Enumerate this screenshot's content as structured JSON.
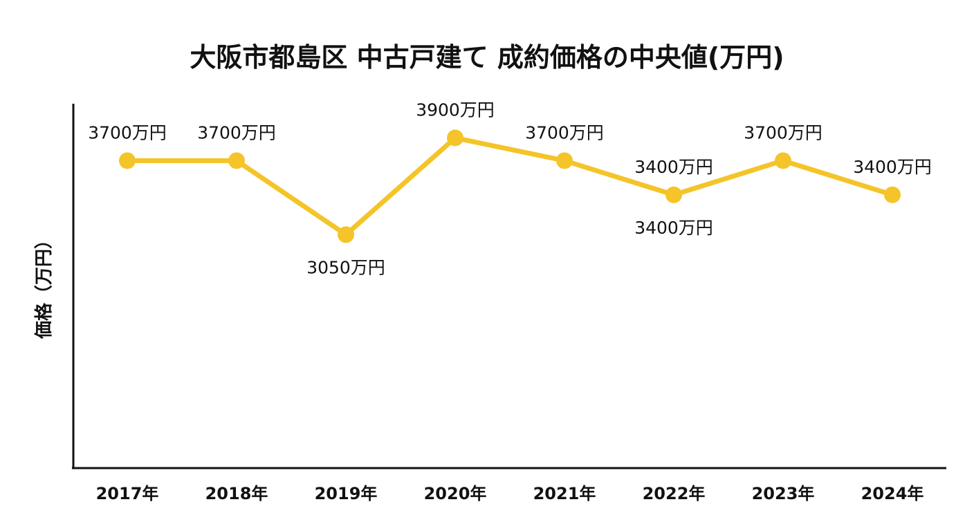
{
  "chart_data": {
    "type": "line",
    "title": "大阪市都島区 中古戸建て 成約価格の中央値(万円)",
    "xlabel": "",
    "ylabel": "価格（万円）",
    "categories": [
      "2017年",
      "2018年",
      "2019年",
      "2020年",
      "2021年",
      "2022年",
      "2023年",
      "2024年"
    ],
    "series": [
      {
        "values": [
          3700,
          3700,
          3050,
          3900,
          3700,
          3400,
          3700,
          3400
        ],
        "data_labels": [
          "3700万円",
          "3700万円",
          "3050万円",
          "3900万円",
          "3700万円",
          "3400万円",
          "3700万円",
          "3400万円"
        ],
        "color": "#F4C428"
      }
    ],
    "extra_labels": [
      {
        "category": "2022年",
        "text": "3400万円",
        "position": "above"
      }
    ],
    "ylim": [
      1000,
      4200
    ],
    "grid": false,
    "legend": "none",
    "axis_color": "#111111"
  }
}
